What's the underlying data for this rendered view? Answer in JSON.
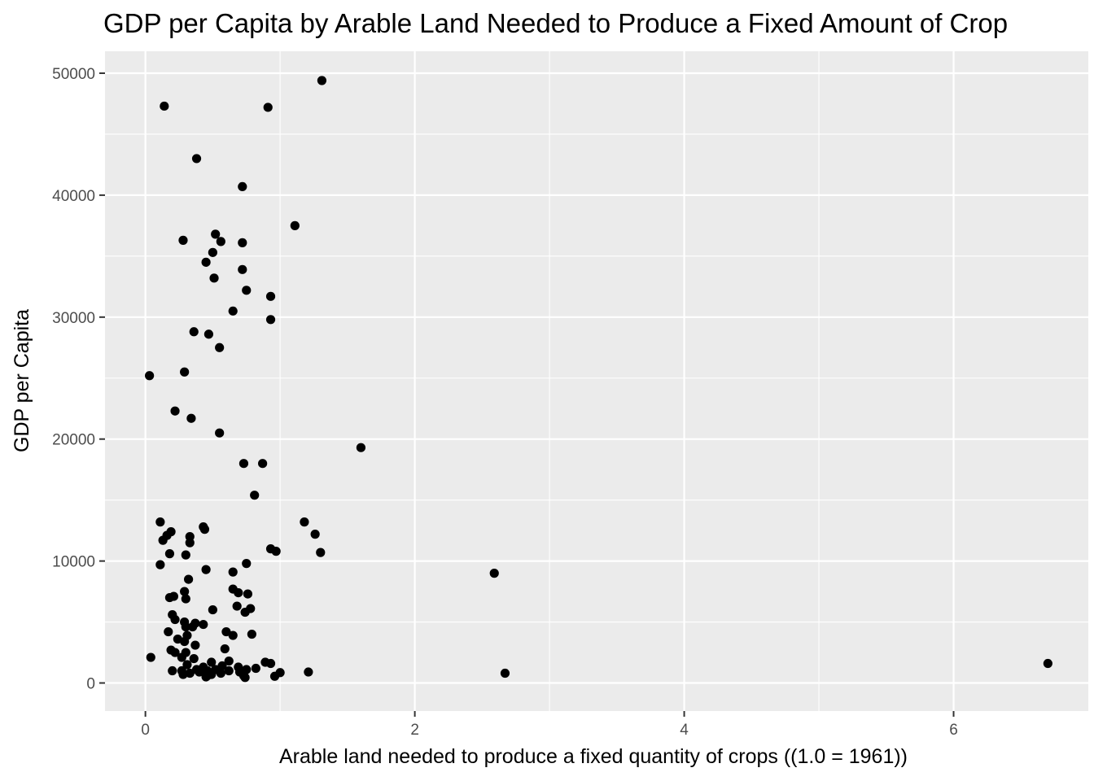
{
  "chart_data": {
    "type": "scatter",
    "title": "GDP per Capita by Arable Land Needed to Produce a Fixed Amount of Crop",
    "xlabel": "Arable land needed to produce a fixed quantity of crops ((1.0 = 1961))",
    "ylabel": "GDP per Capita",
    "xlim": [
      -0.3,
      7.0
    ],
    "ylim": [
      -2300,
      51800
    ],
    "x_ticks": [
      0,
      2,
      4,
      6
    ],
    "x_tick_labels": [
      "0",
      "2",
      "4",
      "6"
    ],
    "y_ticks": [
      0,
      10000,
      20000,
      30000,
      40000,
      50000
    ],
    "y_tick_labels": [
      "0",
      "10000",
      "20000",
      "30000",
      "40000",
      "50000"
    ],
    "grid": true,
    "legend": "none",
    "colors": {
      "panel": "#EBEBEB",
      "grid": "#FFFFFF",
      "point": "#000000"
    },
    "points": [
      {
        "x": 1.31,
        "y": 49400
      },
      {
        "x": 0.14,
        "y": 47300
      },
      {
        "x": 0.91,
        "y": 47200
      },
      {
        "x": 0.38,
        "y": 43000
      },
      {
        "x": 0.72,
        "y": 40700
      },
      {
        "x": 1.11,
        "y": 37500
      },
      {
        "x": 0.52,
        "y": 36800
      },
      {
        "x": 0.28,
        "y": 36300
      },
      {
        "x": 0.56,
        "y": 36200
      },
      {
        "x": 0.72,
        "y": 36100
      },
      {
        "x": 0.45,
        "y": 34500
      },
      {
        "x": 0.5,
        "y": 35300
      },
      {
        "x": 0.72,
        "y": 33900
      },
      {
        "x": 0.51,
        "y": 33200
      },
      {
        "x": 0.75,
        "y": 32200
      },
      {
        "x": 0.93,
        "y": 31700
      },
      {
        "x": 0.65,
        "y": 30500
      },
      {
        "x": 0.93,
        "y": 29800
      },
      {
        "x": 0.36,
        "y": 28800
      },
      {
        "x": 0.47,
        "y": 28600
      },
      {
        "x": 0.55,
        "y": 27500
      },
      {
        "x": 0.29,
        "y": 25500
      },
      {
        "x": 0.03,
        "y": 25200
      },
      {
        "x": 0.22,
        "y": 22300
      },
      {
        "x": 0.34,
        "y": 21700
      },
      {
        "x": 0.55,
        "y": 20500
      },
      {
        "x": 1.6,
        "y": 19300
      },
      {
        "x": 0.73,
        "y": 18000
      },
      {
        "x": 0.87,
        "y": 18000
      },
      {
        "x": 0.81,
        "y": 15400
      },
      {
        "x": 0.11,
        "y": 13200
      },
      {
        "x": 1.18,
        "y": 13200
      },
      {
        "x": 0.43,
        "y": 12800
      },
      {
        "x": 0.44,
        "y": 12600
      },
      {
        "x": 0.19,
        "y": 12400
      },
      {
        "x": 1.26,
        "y": 12200
      },
      {
        "x": 0.16,
        "y": 12100
      },
      {
        "x": 0.33,
        "y": 12000
      },
      {
        "x": 0.13,
        "y": 11700
      },
      {
        "x": 0.33,
        "y": 11500
      },
      {
        "x": 0.93,
        "y": 11000
      },
      {
        "x": 0.97,
        "y": 10800
      },
      {
        "x": 1.3,
        "y": 10700
      },
      {
        "x": 0.18,
        "y": 10600
      },
      {
        "x": 0.3,
        "y": 10500
      },
      {
        "x": 0.75,
        "y": 9800
      },
      {
        "x": 0.11,
        "y": 9700
      },
      {
        "x": 0.45,
        "y": 9300
      },
      {
        "x": 0.65,
        "y": 9100
      },
      {
        "x": 2.59,
        "y": 9000
      },
      {
        "x": 0.32,
        "y": 8500
      },
      {
        "x": 0.65,
        "y": 7700
      },
      {
        "x": 0.29,
        "y": 7500
      },
      {
        "x": 0.69,
        "y": 7400
      },
      {
        "x": 0.76,
        "y": 7300
      },
      {
        "x": 0.21,
        "y": 7100
      },
      {
        "x": 0.18,
        "y": 7000
      },
      {
        "x": 0.3,
        "y": 6900
      },
      {
        "x": 0.68,
        "y": 6300
      },
      {
        "x": 0.78,
        "y": 6100
      },
      {
        "x": 0.5,
        "y": 6000
      },
      {
        "x": 0.74,
        "y": 5800
      },
      {
        "x": 0.2,
        "y": 5600
      },
      {
        "x": 0.22,
        "y": 5200
      },
      {
        "x": 0.29,
        "y": 5000
      },
      {
        "x": 0.37,
        "y": 4900
      },
      {
        "x": 0.43,
        "y": 4800
      },
      {
        "x": 0.3,
        "y": 4600
      },
      {
        "x": 0.35,
        "y": 4600
      },
      {
        "x": 0.17,
        "y": 4200
      },
      {
        "x": 0.6,
        "y": 4200
      },
      {
        "x": 0.79,
        "y": 4000
      },
      {
        "x": 0.31,
        "y": 3900
      },
      {
        "x": 0.65,
        "y": 3900
      },
      {
        "x": 0.24,
        "y": 3600
      },
      {
        "x": 0.29,
        "y": 3400
      },
      {
        "x": 0.37,
        "y": 3100
      },
      {
        "x": 0.59,
        "y": 2800
      },
      {
        "x": 0.19,
        "y": 2700
      },
      {
        "x": 0.22,
        "y": 2500
      },
      {
        "x": 0.3,
        "y": 2500
      },
      {
        "x": 0.04,
        "y": 2100
      },
      {
        "x": 0.27,
        "y": 2100
      },
      {
        "x": 0.36,
        "y": 2000
      },
      {
        "x": 0.62,
        "y": 1800
      },
      {
        "x": 0.49,
        "y": 1700
      },
      {
        "x": 0.89,
        "y": 1700
      },
      {
        "x": 0.93,
        "y": 1600
      },
      {
        "x": 6.7,
        "y": 1600
      },
      {
        "x": 0.31,
        "y": 1500
      },
      {
        "x": 0.57,
        "y": 1400
      },
      {
        "x": 0.43,
        "y": 1300
      },
      {
        "x": 0.69,
        "y": 1300
      },
      {
        "x": 0.82,
        "y": 1200
      },
      {
        "x": 0.38,
        "y": 1100
      },
      {
        "x": 0.52,
        "y": 1100
      },
      {
        "x": 0.75,
        "y": 1100
      },
      {
        "x": 0.2,
        "y": 1000
      },
      {
        "x": 0.27,
        "y": 1000
      },
      {
        "x": 0.46,
        "y": 1000
      },
      {
        "x": 0.62,
        "y": 1000
      },
      {
        "x": 0.7,
        "y": 900
      },
      {
        "x": 0.4,
        "y": 900
      },
      {
        "x": 1.21,
        "y": 900
      },
      {
        "x": 1.0,
        "y": 850
      },
      {
        "x": 0.56,
        "y": 800
      },
      {
        "x": 2.67,
        "y": 800
      },
      {
        "x": 0.33,
        "y": 800
      },
      {
        "x": 0.28,
        "y": 700
      },
      {
        "x": 0.49,
        "y": 700
      },
      {
        "x": 0.46,
        "y": 600
      },
      {
        "x": 0.73,
        "y": 600
      },
      {
        "x": 0.96,
        "y": 550
      },
      {
        "x": 0.45,
        "y": 500
      },
      {
        "x": 0.74,
        "y": 450
      }
    ]
  }
}
